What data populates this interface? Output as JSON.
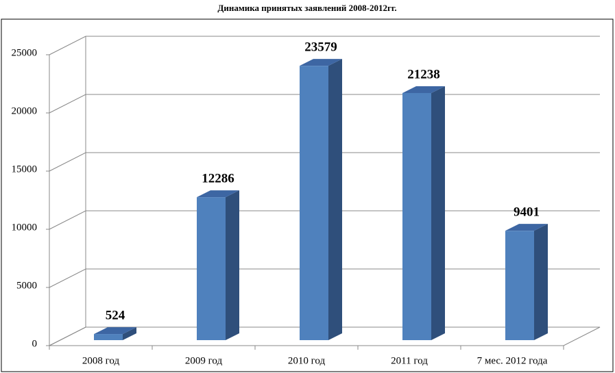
{
  "chart_data": {
    "type": "bar3d",
    "title": "Динамика принятых заявлений 2008-2012гг.",
    "categories": [
      "2008 год",
      "2009 год",
      "2010 год",
      "2011 год",
      "7 мес. 2012 года"
    ],
    "values": [
      524,
      12286,
      23579,
      21238,
      9401
    ],
    "color": "#4f81bd",
    "ylim": [
      0,
      25000
    ],
    "yticks": [
      0,
      5000,
      10000,
      15000,
      20000,
      25000
    ],
    "grid": true
  }
}
